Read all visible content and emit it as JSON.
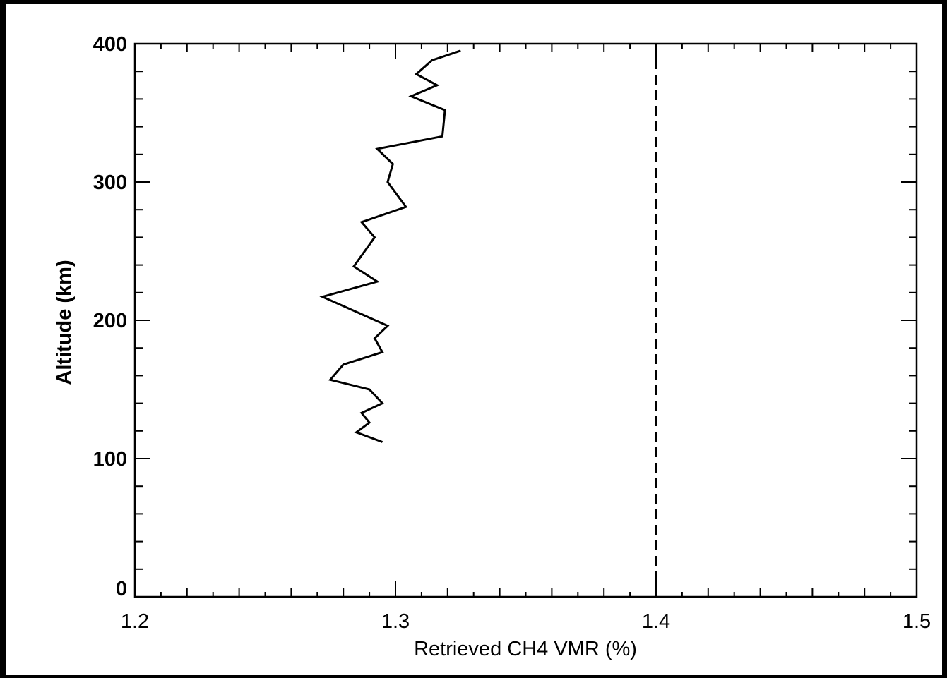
{
  "chart_data": {
    "type": "line",
    "title": "",
    "xlabel": "Retrieved CH4 VMR (%)",
    "ylabel": "Altitude (km)",
    "xlim": [
      1.2,
      1.5
    ],
    "ylim": [
      0,
      400
    ],
    "x_ticks": [
      "1.2",
      "1.3",
      "1.4",
      "1.5"
    ],
    "y_ticks": [
      "0",
      "100",
      "200",
      "300",
      "400"
    ],
    "grid": false,
    "legend": "none",
    "series": [
      {
        "style": "solid",
        "color": "#000000",
        "points": [
          {
            "x": 1.295,
            "y": 112
          },
          {
            "x": 1.285,
            "y": 119
          },
          {
            "x": 1.29,
            "y": 126
          },
          {
            "x": 1.287,
            "y": 133
          },
          {
            "x": 1.295,
            "y": 140
          },
          {
            "x": 1.29,
            "y": 150
          },
          {
            "x": 1.275,
            "y": 157
          },
          {
            "x": 1.28,
            "y": 168
          },
          {
            "x": 1.295,
            "y": 177
          },
          {
            "x": 1.292,
            "y": 187
          },
          {
            "x": 1.297,
            "y": 196
          },
          {
            "x": 1.272,
            "y": 217
          },
          {
            "x": 1.293,
            "y": 228
          },
          {
            "x": 1.284,
            "y": 239
          },
          {
            "x": 1.292,
            "y": 260
          },
          {
            "x": 1.287,
            "y": 271
          },
          {
            "x": 1.304,
            "y": 282
          },
          {
            "x": 1.297,
            "y": 300
          },
          {
            "x": 1.299,
            "y": 313
          },
          {
            "x": 1.293,
            "y": 324
          },
          {
            "x": 1.318,
            "y": 333
          },
          {
            "x": 1.319,
            "y": 352
          },
          {
            "x": 1.306,
            "y": 362
          },
          {
            "x": 1.316,
            "y": 370
          },
          {
            "x": 1.308,
            "y": 378
          },
          {
            "x": 1.314,
            "y": 388
          },
          {
            "x": 1.325,
            "y": 395
          }
        ]
      },
      {
        "style": "dashed",
        "color": "#000000",
        "points": [
          {
            "x": 1.4,
            "y": 0
          },
          {
            "x": 1.4,
            "y": 400
          }
        ]
      }
    ]
  }
}
